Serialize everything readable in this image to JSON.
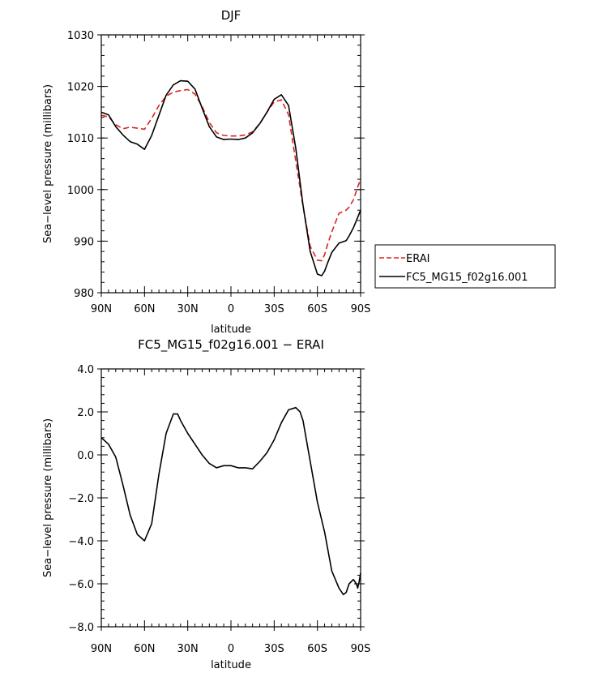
{
  "chart_data": [
    {
      "type": "line",
      "title": "DJF",
      "xlabel": "latitude",
      "ylabel": "Sea−level pressure (millibars)",
      "xlim": [
        90,
        -90
      ],
      "ylim": [
        980,
        1030
      ],
      "x_ticks": [
        90,
        60,
        30,
        0,
        -30,
        -60,
        -90
      ],
      "x_tick_labels": [
        "90N",
        "60N",
        "30N",
        "0",
        "30S",
        "60S",
        "90S"
      ],
      "y_ticks": [
        980,
        990,
        1000,
        1010,
        1020,
        1030
      ],
      "y_tick_labels": [
        "980",
        "990",
        "1000",
        "1010",
        "1020",
        "1030"
      ],
      "legend_position": "right",
      "series": [
        {
          "name": "ERAI",
          "color": "#dd2222",
          "dash": "dashed",
          "x": [
            90,
            85,
            80,
            75,
            70,
            65,
            60,
            55,
            50,
            45,
            40,
            35,
            30,
            25,
            20,
            15,
            10,
            5,
            0,
            -5,
            -10,
            -15,
            -20,
            -25,
            -30,
            -35,
            -40,
            -45,
            -50,
            -55,
            -60,
            -63,
            -65,
            -67,
            -70,
            -75,
            -80,
            -82,
            -85,
            -88,
            -90
          ],
          "y": [
            1014.4,
            1014.1,
            1012.6,
            1011.8,
            1012.1,
            1011.9,
            1011.7,
            1013.8,
            1016.3,
            1018.1,
            1018.9,
            1019.2,
            1019.4,
            1018.5,
            1016.1,
            1013.0,
            1011.0,
            1010.5,
            1010.4,
            1010.4,
            1010.6,
            1011.2,
            1012.8,
            1015.0,
            1017.0,
            1017.4,
            1014.5,
            1005.5,
            996.8,
            989.0,
            986.3,
            986.2,
            987.4,
            989.3,
            991.8,
            995.4,
            996.0,
            996.6,
            998.0,
            1000.5,
            1002.0
          ]
        },
        {
          "name": "FC5_MG15_f02g16.001",
          "color": "#000000",
          "dash": "solid",
          "x": [
            90,
            85,
            80,
            75,
            70,
            65,
            60,
            55,
            50,
            45,
            40,
            35,
            30,
            25,
            20,
            15,
            10,
            5,
            0,
            -5,
            -10,
            -15,
            -20,
            -25,
            -30,
            -35,
            -40,
            -45,
            -50,
            -55,
            -60,
            -63,
            -65,
            -67,
            -70,
            -75,
            -80,
            -82,
            -85,
            -88,
            -90
          ],
          "y": [
            1015.0,
            1014.5,
            1012.2,
            1010.6,
            1009.3,
            1008.8,
            1007.8,
            1010.5,
            1014.4,
            1018.3,
            1020.3,
            1021.1,
            1021.0,
            1019.5,
            1015.8,
            1012.2,
            1010.2,
            1009.7,
            1009.8,
            1009.7,
            1010.0,
            1011.0,
            1012.8,
            1015.0,
            1017.5,
            1018.4,
            1016.3,
            1008.0,
            997.0,
            988.0,
            983.6,
            983.3,
            984.2,
            985.7,
            987.8,
            989.6,
            990.1,
            991.0,
            992.6,
            994.6,
            996.0
          ]
        }
      ]
    },
    {
      "type": "line",
      "title": "FC5_MG15_f02g16.001 − ERAI",
      "xlabel": "latitude",
      "ylabel": "Sea−level pressure (millibars)",
      "xlim": [
        90,
        -90
      ],
      "ylim": [
        -8.0,
        4.0
      ],
      "x_ticks": [
        90,
        60,
        30,
        0,
        -30,
        -60,
        -90
      ],
      "x_tick_labels": [
        "90N",
        "60N",
        "30N",
        "0",
        "30S",
        "60S",
        "90S"
      ],
      "y_ticks": [
        -8,
        -6,
        -4,
        -2,
        0,
        2,
        4
      ],
      "y_tick_labels": [
        "−8.0",
        "−6.0",
        "−4.0",
        "−2.0",
        "0.0",
        "2.0",
        "4.0"
      ],
      "series": [
        {
          "name": "",
          "color": "#000000",
          "dash": "solid",
          "x": [
            90,
            85,
            80,
            75,
            70,
            65,
            60,
            55,
            50,
            45,
            40,
            37,
            35,
            30,
            25,
            20,
            15,
            10,
            5,
            0,
            -5,
            -10,
            -15,
            -20,
            -25,
            -30,
            -35,
            -40,
            -45,
            -48,
            -50,
            -55,
            -60,
            -65,
            -70,
            -75,
            -78,
            -80,
            -82,
            -85,
            -87,
            -88,
            -89,
            -90
          ],
          "y": [
            0.8,
            0.5,
            -0.1,
            -1.4,
            -2.8,
            -3.7,
            -4.0,
            -3.2,
            -0.9,
            1.0,
            1.9,
            1.9,
            1.6,
            1.0,
            0.5,
            0.0,
            -0.4,
            -0.6,
            -0.5,
            -0.5,
            -0.6,
            -0.6,
            -0.65,
            -0.3,
            0.1,
            0.7,
            1.5,
            2.1,
            2.2,
            2.0,
            1.6,
            -0.3,
            -2.2,
            -3.6,
            -5.4,
            -6.2,
            -6.5,
            -6.4,
            -6.0,
            -5.8,
            -6.0,
            -6.2,
            -5.9,
            -5.5
          ]
        }
      ]
    }
  ]
}
